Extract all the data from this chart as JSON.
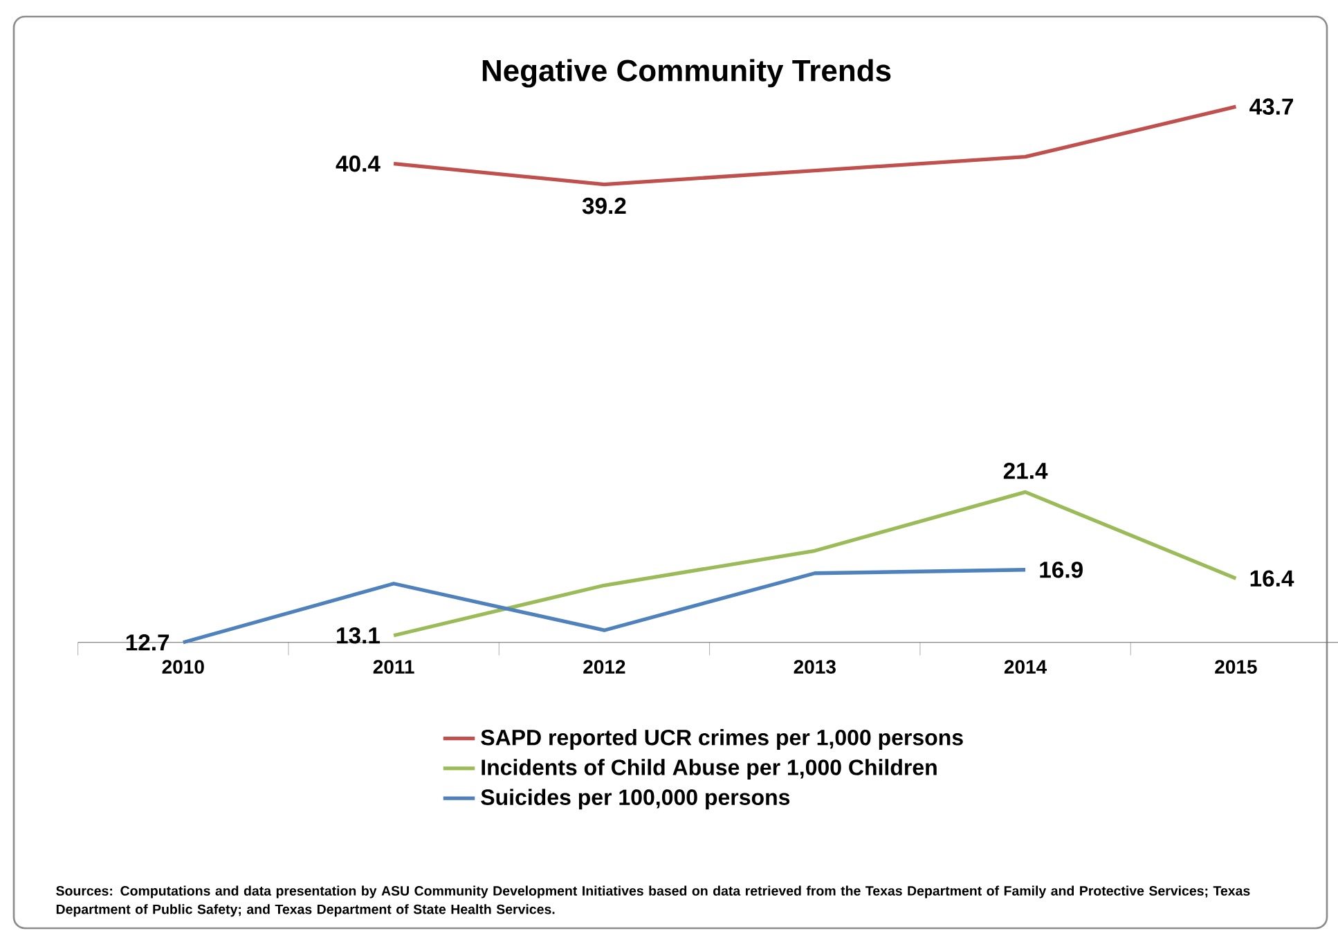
{
  "chart_data": {
    "type": "line",
    "title": "Negative Community Trends",
    "categories": [
      "2010",
      "2011",
      "2012",
      "2013",
      "2014",
      "2015"
    ],
    "series": [
      {
        "name": "SAPD reported UCR crimes per 1,000 persons",
        "color": "#c0504d",
        "values": [
          null,
          40.4,
          39.2,
          40.0,
          40.8,
          43.7
        ],
        "value_labels": [
          null,
          "40.4",
          "39.2",
          null,
          null,
          "43.7"
        ]
      },
      {
        "name": "Incidents of Child Abuse per 1,000 Children",
        "color": "#9bbb59",
        "values": [
          null,
          13.1,
          16.0,
          18.0,
          21.4,
          16.4
        ],
        "value_labels": [
          null,
          "13.1",
          null,
          null,
          "21.4",
          "16.4"
        ]
      },
      {
        "name": "Suicides per 100,000 persons",
        "color": "#4f81bd",
        "values": [
          12.7,
          16.1,
          13.4,
          16.7,
          16.9,
          null
        ],
        "value_labels": [
          "12.7",
          null,
          null,
          null,
          "16.9",
          null
        ]
      }
    ],
    "legend": "bottom",
    "grid": false,
    "marker": "none",
    "line_style": "solid",
    "annotations": [
      "Sources: Computations and data presentation by ASU Community  Development Initiatives based on data retrieved from the Texas Department of Family and Protective Services; Texas Department of Public Safety; and Texas Department of State Health Services."
    ]
  }
}
